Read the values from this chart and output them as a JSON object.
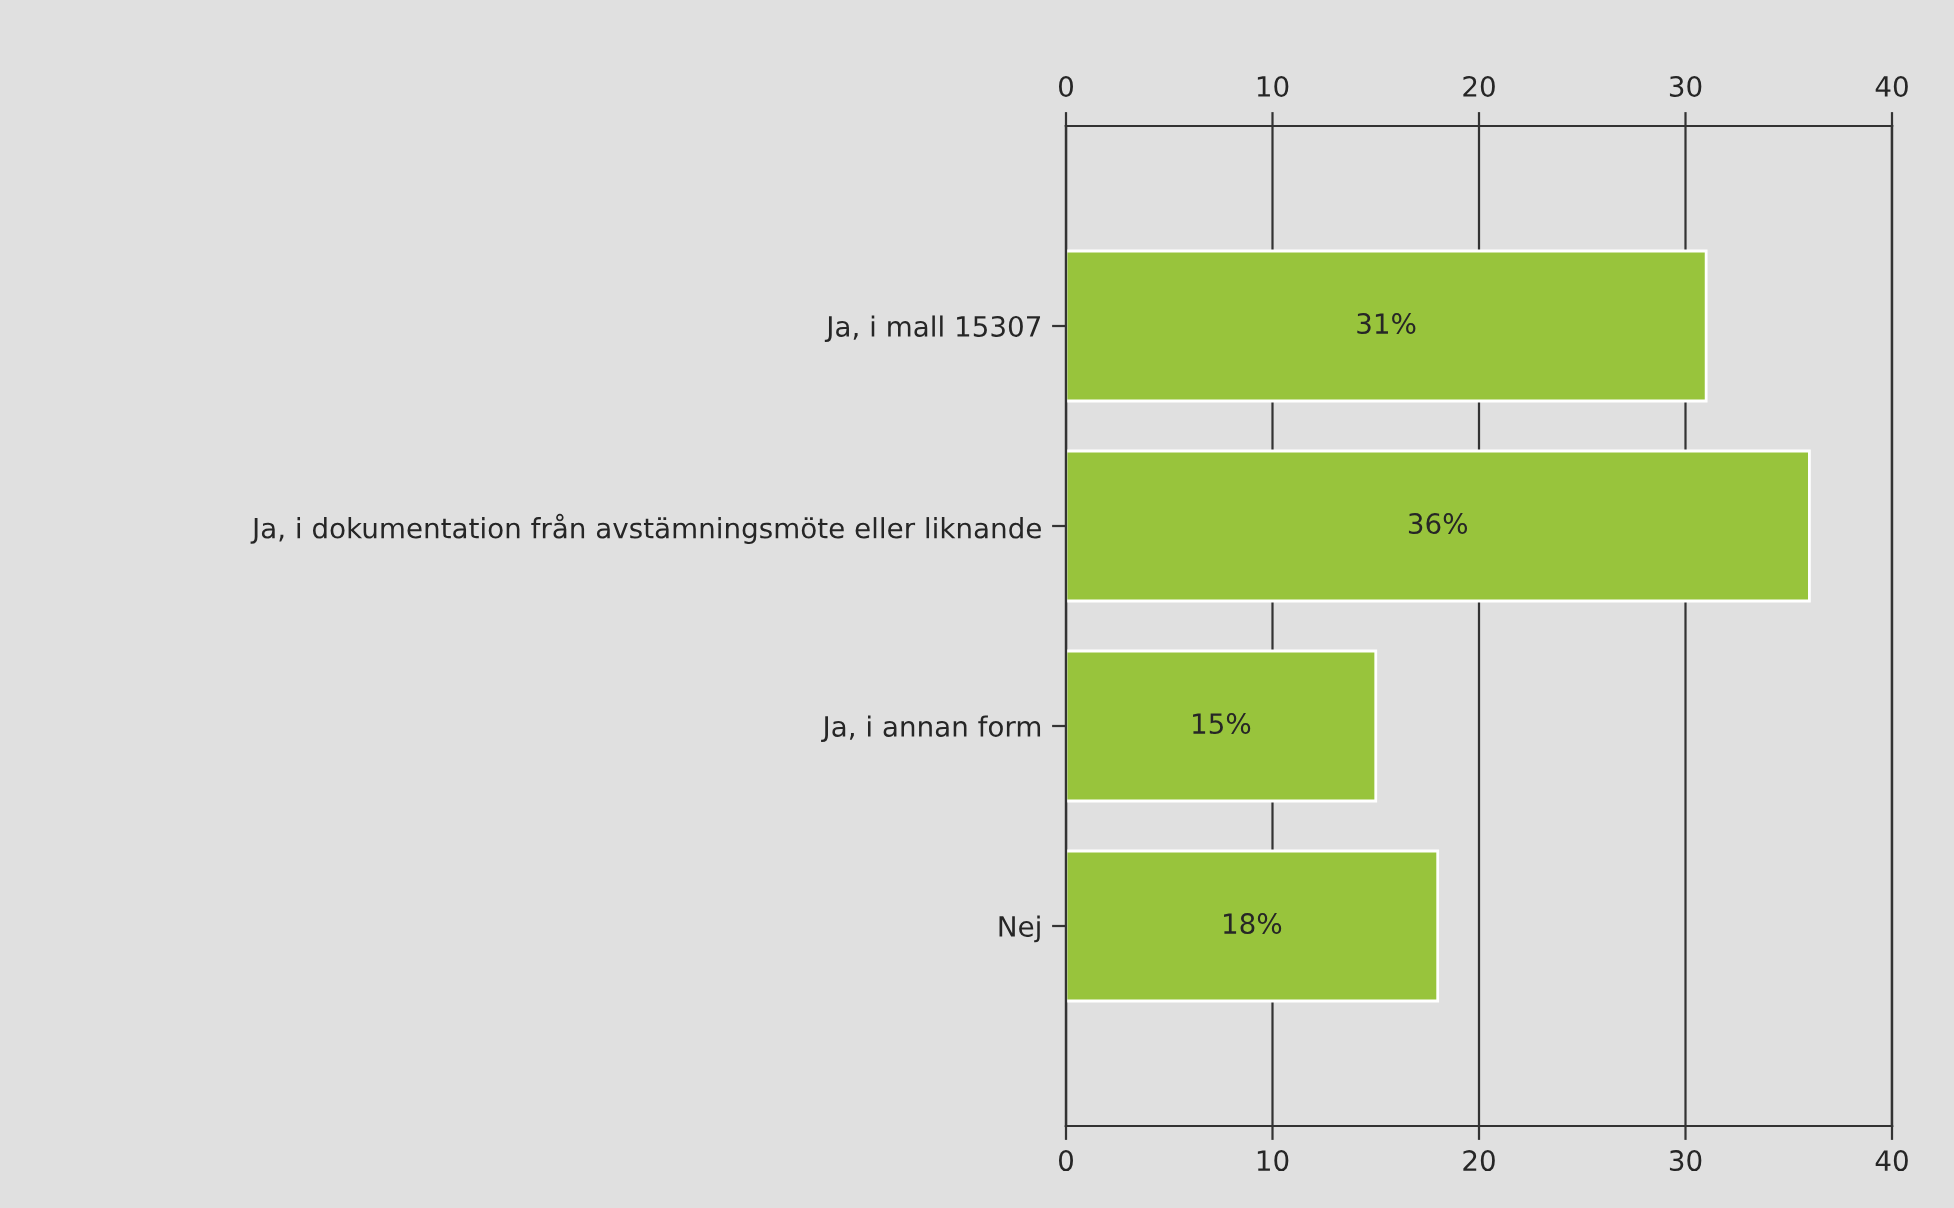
{
  "chart_data": {
    "type": "bar",
    "orientation": "horizontal",
    "categories": [
      "Ja, i mall 15307",
      "Ja, i dokumentation från avstämningsmöte eller liknande",
      "Ja, i annan form",
      "Nej"
    ],
    "values": [
      31,
      36,
      15,
      18
    ],
    "color": "#98c43c",
    "value_labels": [
      "31%",
      "36%",
      "15%",
      "18%"
    ],
    "xlim": [
      0,
      40
    ],
    "xticks": [
      0,
      10,
      20,
      30,
      40
    ],
    "x2lim": [
      0,
      40
    ],
    "x2ticks": [
      0,
      10,
      20,
      30,
      40
    ],
    "grid": "x",
    "legend": false
  }
}
